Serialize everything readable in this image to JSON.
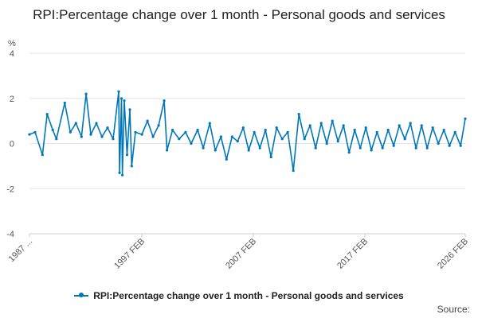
{
  "colors": {
    "series": "#0077bb",
    "grid": "#e6e6e6",
    "axis_text": "#555555"
  },
  "legend_icon": "line-with-dot",
  "chart_data": {
    "type": "line",
    "title": "RPI:Percentage change over 1 month - Personal goods and services",
    "ylabel": "%",
    "xlabel": "",
    "ylim": [
      -4,
      4
    ],
    "yticks": [
      -4,
      -2,
      0,
      2,
      4
    ],
    "x_range": [
      "1987 JAN",
      "2026 FEB"
    ],
    "x_tick_labels": [
      "1987 ...",
      "1997 FEB",
      "2007 FEB",
      "2017 FEB",
      "2026 FEB"
    ],
    "grid": true,
    "legend_position": "bottom",
    "series": [
      {
        "name": "RPI:Percentage change over 1 month - Personal goods and services",
        "points": [
          [
            "1987 JAN",
            0.4
          ],
          [
            "1987 JUL",
            0.5
          ],
          [
            "1988 MAR",
            -0.5
          ],
          [
            "1988 AUG",
            1.3
          ],
          [
            "1989 FEB",
            0.6
          ],
          [
            "1989 JUN",
            0.2
          ],
          [
            "1990 MAR",
            1.8
          ],
          [
            "1990 SEP",
            0.5
          ],
          [
            "1991 MAR",
            0.9
          ],
          [
            "1991 SEP",
            0.3
          ],
          [
            "1992 FEB",
            2.2
          ],
          [
            "1992 JUL",
            0.4
          ],
          [
            "1993 JAN",
            0.9
          ],
          [
            "1993 JUL",
            0.3
          ],
          [
            "1994 JAN",
            0.7
          ],
          [
            "1994 JUL",
            0.2
          ],
          [
            "1995 JAN",
            2.3
          ],
          [
            "1995 FEB",
            -1.3
          ],
          [
            "1995 APR",
            2.0
          ],
          [
            "1995 MAY",
            -1.4
          ],
          [
            "1995 JUL",
            1.9
          ],
          [
            "1995 OCT",
            -0.5
          ],
          [
            "1996 JAN",
            1.5
          ],
          [
            "1996 MAR",
            -1.0
          ],
          [
            "1996 JUL",
            0.5
          ],
          [
            "1997 FEB",
            0.4
          ],
          [
            "1997 AUG",
            1.0
          ],
          [
            "1998 FEB",
            0.3
          ],
          [
            "1998 AUG",
            0.8
          ],
          [
            "1999 FEB",
            1.9
          ],
          [
            "1999 MAY",
            -0.3
          ],
          [
            "1999 NOV",
            0.6
          ],
          [
            "2000 JUN",
            0.2
          ],
          [
            "2001 JAN",
            0.5
          ],
          [
            "2001 JUL",
            0.0
          ],
          [
            "2002 FEB",
            0.6
          ],
          [
            "2002 AUG",
            -0.2
          ],
          [
            "2003 MAR",
            0.9
          ],
          [
            "2003 SEP",
            -0.3
          ],
          [
            "2004 MAR",
            0.3
          ],
          [
            "2004 SEP",
            -0.7
          ],
          [
            "2005 MAR",
            0.3
          ],
          [
            "2005 SEP",
            0.1
          ],
          [
            "2006 MAR",
            0.7
          ],
          [
            "2006 SEP",
            -0.3
          ],
          [
            "2007 MAR",
            0.5
          ],
          [
            "2007 SEP",
            -0.2
          ],
          [
            "2008 MAR",
            0.6
          ],
          [
            "2008 SEP",
            -0.6
          ],
          [
            "2009 MAR",
            0.7
          ],
          [
            "2009 SEP",
            0.2
          ],
          [
            "2010 MAR",
            0.5
          ],
          [
            "2010 SEP",
            -1.2
          ],
          [
            "2011 MAR",
            1.3
          ],
          [
            "2011 SEP",
            0.2
          ],
          [
            "2012 MAR",
            0.8
          ],
          [
            "2012 SEP",
            -0.2
          ],
          [
            "2013 MAR",
            0.9
          ],
          [
            "2013 SEP",
            0.0
          ],
          [
            "2014 MAR",
            1.0
          ],
          [
            "2014 SEP",
            0.1
          ],
          [
            "2015 MAR",
            0.8
          ],
          [
            "2015 SEP",
            -0.4
          ],
          [
            "2016 MAR",
            0.6
          ],
          [
            "2016 SEP",
            -0.2
          ],
          [
            "2017 MAR",
            0.7
          ],
          [
            "2017 SEP",
            -0.3
          ],
          [
            "2018 MAR",
            0.5
          ],
          [
            "2018 SEP",
            -0.2
          ],
          [
            "2019 MAR",
            0.6
          ],
          [
            "2019 SEP",
            -0.1
          ],
          [
            "2020 MAR",
            0.8
          ],
          [
            "2020 SEP",
            0.2
          ],
          [
            "2021 MAR",
            0.9
          ],
          [
            "2021 SEP",
            -0.2
          ],
          [
            "2022 MAR",
            0.8
          ],
          [
            "2022 SEP",
            -0.2
          ],
          [
            "2023 MAR",
            0.7
          ],
          [
            "2023 SEP",
            0.0
          ],
          [
            "2024 MAR",
            0.6
          ],
          [
            "2024 SEP",
            -0.1
          ],
          [
            "2025 MAR",
            0.5
          ],
          [
            "2025 SEP",
            -0.1
          ],
          [
            "2026 FEB",
            1.1
          ]
        ]
      }
    ]
  },
  "footer": {
    "source": "Source:"
  }
}
